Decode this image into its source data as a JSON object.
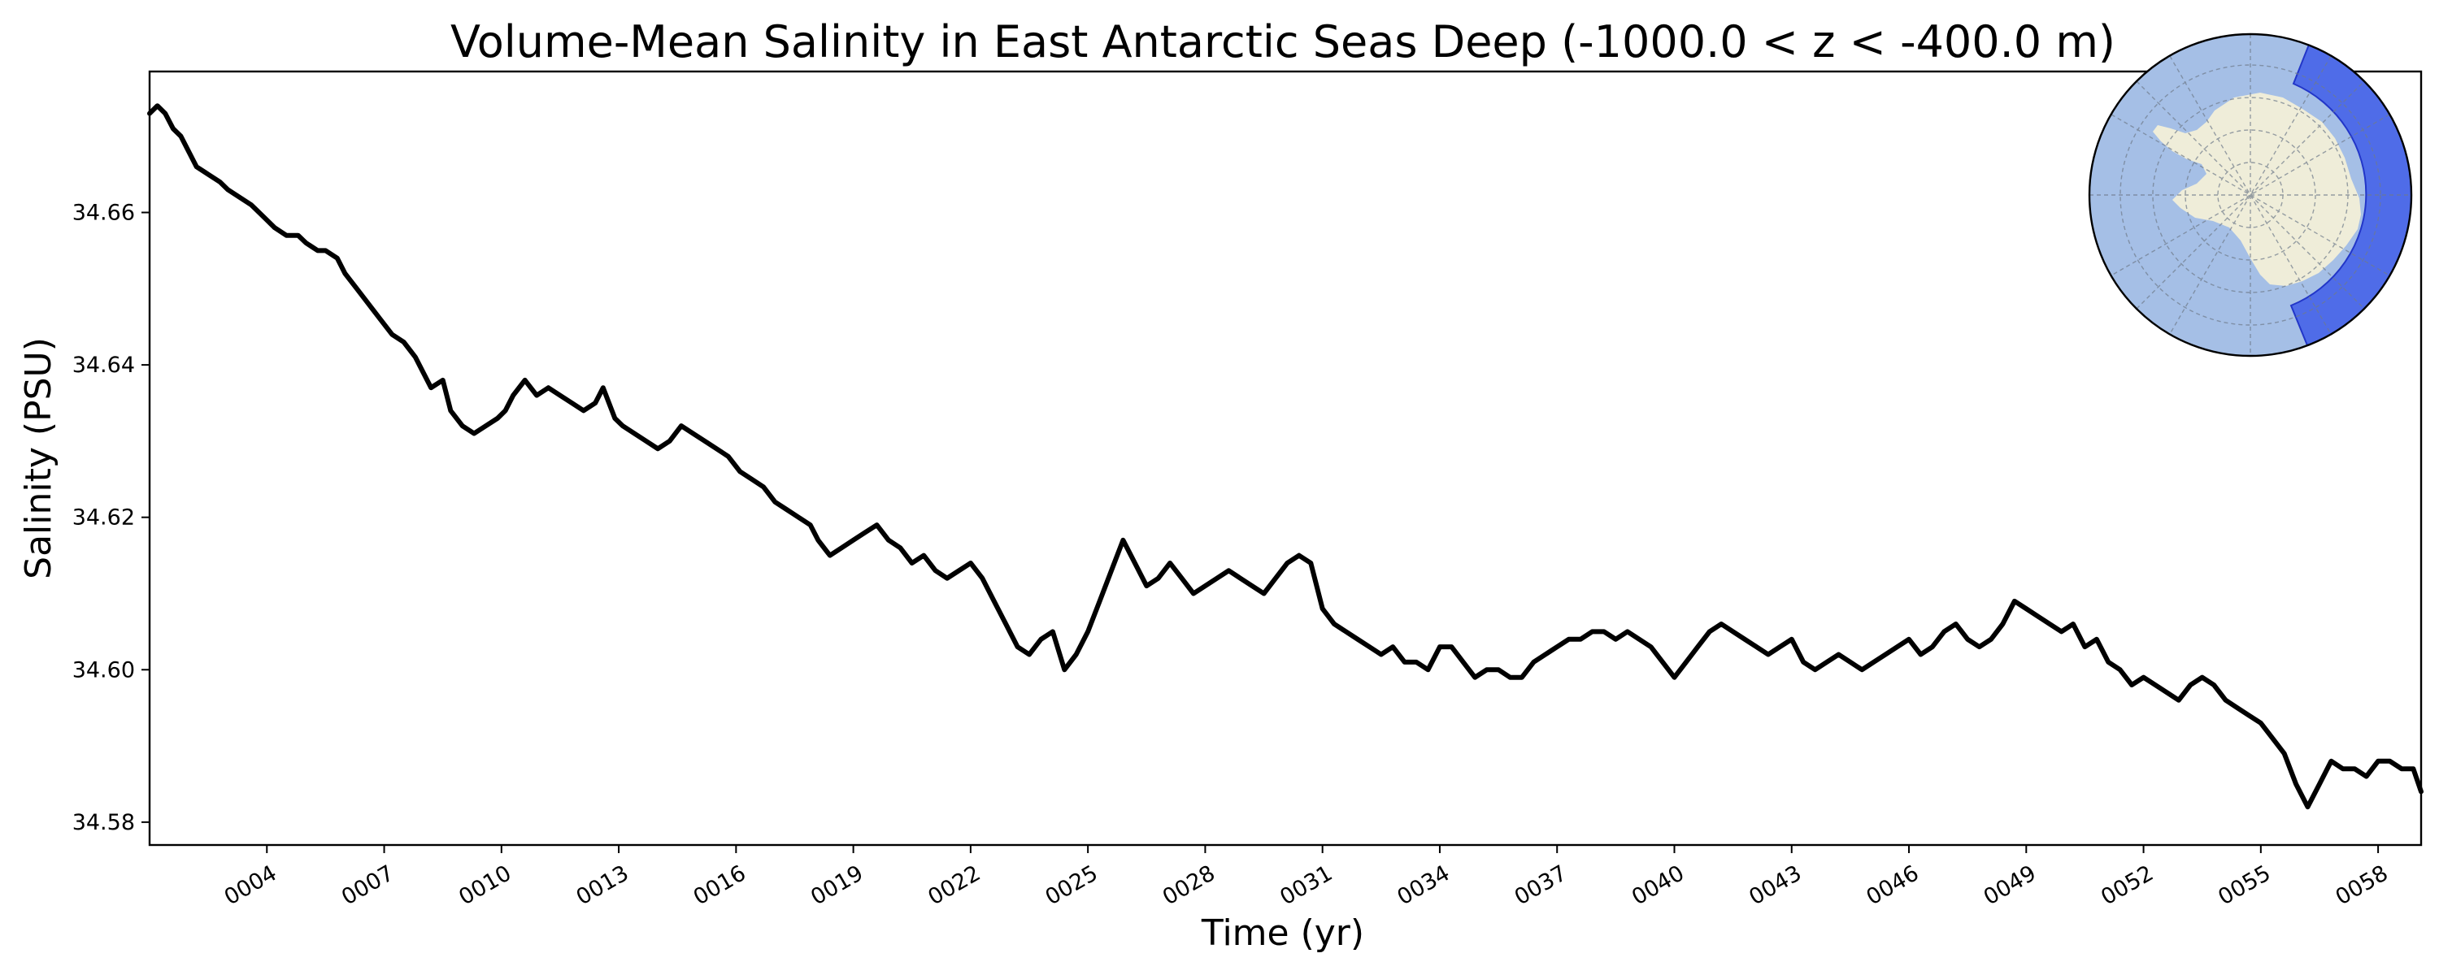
{
  "chart_data": {
    "type": "line",
    "title": "Volume-Mean Salinity in East Antarctic Seas Deep (-1000.0 < z < -400.0 m)",
    "xlabel": "Time (yr)",
    "ylabel": "Salinity (PSU)",
    "xlim": [
      1.0,
      59.1
    ],
    "ylim": [
      34.577,
      34.6785
    ],
    "x_ticks": [
      4,
      7,
      10,
      13,
      16,
      19,
      22,
      25,
      28,
      31,
      34,
      37,
      40,
      43,
      46,
      49,
      52,
      55,
      58
    ],
    "x_tick_labels": [
      "0004",
      "0007",
      "0010",
      "0013",
      "0016",
      "0019",
      "0022",
      "0025",
      "0028",
      "0031",
      "0034",
      "0037",
      "0040",
      "0043",
      "0046",
      "0049",
      "0052",
      "0055",
      "0058"
    ],
    "y_ticks": [
      34.58,
      34.6,
      34.62,
      34.64,
      34.66
    ],
    "y_tick_labels": [
      "34.58",
      "34.60",
      "34.62",
      "34.64",
      "34.66"
    ],
    "grid": false,
    "series": [
      {
        "color": "#000000",
        "x": [
          1.0,
          1.2,
          1.4,
          1.6,
          1.8,
          2.0,
          2.2,
          2.5,
          2.8,
          3.0,
          3.3,
          3.6,
          3.8,
          4.0,
          4.2,
          4.5,
          4.8,
          5.0,
          5.3,
          5.5,
          5.8,
          6.0,
          6.3,
          6.6,
          6.9,
          7.2,
          7.5,
          7.8,
          8.0,
          8.2,
          8.5,
          8.7,
          9.0,
          9.3,
          9.6,
          9.9,
          10.1,
          10.3,
          10.6,
          10.9,
          11.2,
          11.5,
          11.8,
          12.1,
          12.4,
          12.6,
          12.9,
          13.1,
          13.4,
          13.7,
          14.0,
          14.3,
          14.6,
          14.9,
          15.2,
          15.5,
          15.8,
          16.1,
          16.4,
          16.7,
          17.0,
          17.3,
          17.6,
          17.9,
          18.1,
          18.4,
          18.7,
          19.0,
          19.3,
          19.6,
          19.9,
          20.2,
          20.5,
          20.8,
          21.1,
          21.4,
          21.7,
          22.0,
          22.3,
          22.6,
          22.9,
          23.2,
          23.5,
          23.8,
          24.1,
          24.4,
          24.7,
          25.0,
          25.3,
          25.6,
          25.9,
          26.2,
          26.5,
          26.8,
          27.1,
          27.4,
          27.7,
          28.0,
          28.3,
          28.6,
          28.9,
          29.2,
          29.5,
          29.8,
          30.1,
          30.4,
          30.7,
          31.0,
          31.3,
          31.6,
          31.9,
          32.2,
          32.5,
          32.8,
          33.1,
          33.4,
          33.7,
          34.0,
          34.3,
          34.6,
          34.9,
          35.2,
          35.5,
          35.8,
          36.1,
          36.4,
          36.7,
          37.0,
          37.3,
          37.6,
          37.9,
          38.2,
          38.5,
          38.8,
          39.1,
          39.4,
          39.7,
          40.0,
          40.3,
          40.6,
          40.9,
          41.2,
          41.5,
          41.8,
          42.1,
          42.4,
          42.7,
          43.0,
          43.3,
          43.6,
          43.9,
          44.2,
          44.5,
          44.8,
          45.1,
          45.4,
          45.7,
          46.0,
          46.3,
          46.6,
          46.9,
          47.2,
          47.5,
          47.8,
          48.1,
          48.4,
          48.7,
          49.0,
          49.3,
          49.6,
          49.9,
          50.2,
          50.5,
          50.8,
          51.1,
          51.4,
          51.7,
          52.0,
          52.3,
          52.6,
          52.9,
          53.2,
          53.5,
          53.8,
          54.1,
          54.4,
          54.7,
          55.0,
          55.3,
          55.6,
          55.9,
          56.2,
          56.5,
          56.8,
          57.1,
          57.4,
          57.7,
          58.0,
          58.3,
          58.6,
          58.9,
          59.1
        ],
        "y": [
          34.673,
          34.674,
          34.673,
          34.671,
          34.67,
          34.668,
          34.666,
          34.665,
          34.664,
          34.663,
          34.662,
          34.661,
          34.66,
          34.659,
          34.658,
          34.657,
          34.657,
          34.656,
          34.655,
          34.655,
          34.654,
          34.652,
          34.65,
          34.648,
          34.646,
          34.644,
          34.643,
          34.641,
          34.639,
          34.637,
          34.638,
          34.634,
          34.632,
          34.631,
          34.632,
          34.633,
          34.634,
          34.636,
          34.638,
          34.636,
          34.637,
          34.636,
          34.635,
          34.634,
          34.635,
          34.637,
          34.633,
          34.632,
          34.631,
          34.63,
          34.629,
          34.63,
          34.632,
          34.631,
          34.63,
          34.629,
          34.628,
          34.626,
          34.625,
          34.624,
          34.622,
          34.621,
          34.62,
          34.619,
          34.617,
          34.615,
          34.616,
          34.617,
          34.618,
          34.619,
          34.617,
          34.616,
          34.614,
          34.615,
          34.613,
          34.612,
          34.613,
          34.614,
          34.612,
          34.609,
          34.606,
          34.603,
          34.602,
          34.604,
          34.605,
          34.6,
          34.602,
          34.605,
          34.609,
          34.613,
          34.617,
          34.614,
          34.611,
          34.612,
          34.614,
          34.612,
          34.61,
          34.611,
          34.612,
          34.613,
          34.612,
          34.611,
          34.61,
          34.612,
          34.614,
          34.615,
          34.614,
          34.608,
          34.606,
          34.605,
          34.604,
          34.603,
          34.602,
          34.603,
          34.601,
          34.601,
          34.6,
          34.603,
          34.603,
          34.601,
          34.599,
          34.6,
          34.6,
          34.599,
          34.599,
          34.601,
          34.602,
          34.603,
          34.604,
          34.604,
          34.605,
          34.605,
          34.604,
          34.605,
          34.604,
          34.603,
          34.601,
          34.599,
          34.601,
          34.603,
          34.605,
          34.606,
          34.605,
          34.604,
          34.603,
          34.602,
          34.603,
          34.604,
          34.601,
          34.6,
          34.601,
          34.602,
          34.601,
          34.6,
          34.601,
          34.602,
          34.603,
          34.604,
          34.602,
          34.603,
          34.605,
          34.606,
          34.604,
          34.603,
          34.604,
          34.606,
          34.609,
          34.608,
          34.607,
          34.606,
          34.605,
          34.606,
          34.603,
          34.604,
          34.601,
          34.6,
          34.598,
          34.599,
          34.598,
          34.597,
          34.596,
          34.598,
          34.599,
          34.598,
          34.596,
          34.595,
          34.594,
          34.593,
          34.591,
          34.589,
          34.585,
          34.582,
          34.585,
          34.588,
          34.587,
          34.587,
          34.586,
          34.588,
          34.588,
          34.587,
          34.587,
          34.584
        ]
      }
    ]
  },
  "inset_map": {
    "ocean_color": "#a5bfe6",
    "land_color": "#efedd9",
    "region_color": "#3f5de8"
  }
}
